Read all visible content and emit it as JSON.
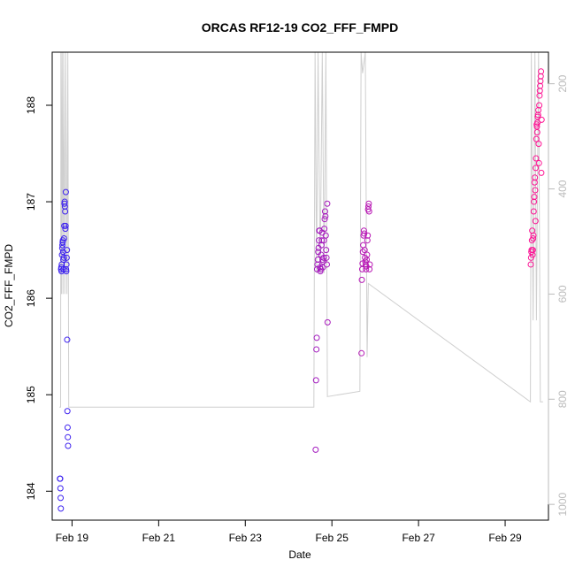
{
  "chart_data": {
    "type": "scatter",
    "title": "ORCAS RF12-19 CO2_FFF_FMPD",
    "xlabel": "Date",
    "ylabel": "CO2_FFF_FMPD",
    "x_axis": {
      "min": "2016-02-18T13:00",
      "max": "2016-03-01T00:00",
      "ticks": [
        {
          "label": "Feb 19",
          "date": "2016-02-19"
        },
        {
          "label": "Feb 21",
          "date": "2016-02-21"
        },
        {
          "label": "Feb 23",
          "date": "2016-02-23"
        },
        {
          "label": "Feb 25",
          "date": "2016-02-25"
        },
        {
          "label": "Feb 27",
          "date": "2016-02-27"
        },
        {
          "label": "Feb 29",
          "date": "2016-02-29"
        }
      ]
    },
    "y_axis": {
      "ylim": [
        183.7,
        188.55
      ],
      "ticks": [
        184,
        185,
        186,
        187,
        188
      ]
    },
    "y2_axis": {
      "ylim": [
        1030,
        140
      ],
      "ticks": [
        200,
        400,
        600,
        800,
        1000
      ],
      "color": "#bbbbbb"
    },
    "grid": false,
    "colors": {
      "points_start": "#3b22f0",
      "points_end": "#ff1493",
      "secondary_line": "#cfcfcf",
      "axes": "#000000"
    },
    "series": [
      {
        "type": "points",
        "groups": [
          {
            "date": "2016-02-18",
            "t0": 17.3,
            "t1": 21.8,
            "values": [
              184.13,
              184.13,
              184.03,
              183.93,
              183.82,
              186.3,
              186.32,
              186.28,
              186.35,
              186.45,
              186.52,
              186.55,
              186.58,
              186.6,
              186.48,
              186.4,
              186.3,
              186.42,
              186.62,
              186.75,
              186.98,
              187.0,
              186.95,
              186.9,
              186.72,
              186.75,
              187.1,
              186.3,
              186.28,
              186.35,
              186.42,
              186.5,
              185.57,
              184.83,
              184.66,
              184.56,
              184.47
            ]
          },
          {
            "date": "2016-02-24",
            "t0": 15.0,
            "t1": 21.6,
            "values": [
              184.43,
              185.15,
              185.47,
              185.59,
              186.3,
              186.35,
              186.4,
              186.48,
              186.52,
              186.6,
              186.7,
              186.7,
              186.32,
              186.28,
              186.3,
              186.45,
              186.55,
              186.6,
              186.68,
              186.4,
              186.32,
              186.38,
              186.42,
              186.6,
              186.72,
              186.82,
              186.9,
              186.85,
              186.65,
              186.5,
              186.42,
              186.35,
              186.98,
              185.75
            ]
          },
          {
            "date": "2016-02-25",
            "t0": 16.4,
            "t1": 21.0,
            "values": [
              185.43,
              186.19,
              186.3,
              186.36,
              186.48,
              186.55,
              186.65,
              186.7,
              186.67,
              186.5,
              186.42,
              186.38,
              186.35,
              186.3,
              186.33,
              186.4,
              186.45,
              186.6,
              186.65,
              186.92,
              186.95,
              186.98,
              186.9,
              186.3,
              186.35
            ]
          },
          {
            "date": "2016-02-29",
            "t0": 14.2,
            "t1": 20.2,
            "values": [
              186.35,
              186.42,
              186.48,
              186.5,
              186.6,
              186.7,
              186.45,
              186.5,
              186.62,
              186.65,
              186.9,
              187.0,
              187.05,
              187.2,
              187.25,
              187.12,
              186.8,
              187.35,
              187.45,
              187.65,
              187.8,
              187.78,
              187.72,
              187.82,
              187.88,
              187.9,
              187.95,
              187.6,
              187.4,
              188.0,
              188.1,
              188.15,
              188.2,
              188.25,
              188.3,
              188.35,
              187.3,
              187.85
            ]
          }
        ]
      },
      {
        "type": "line",
        "axis": "right",
        "note_source": "secondary trace plotted against right axis",
        "path_points": [
          [
            "2016-02-18T17:00",
            815
          ],
          [
            "2016-02-18T17:40",
            815
          ],
          [
            "2016-02-18T17:50",
            140
          ],
          [
            "2016-02-18T18:10",
            600
          ],
          [
            "2016-02-18T18:30",
            140
          ],
          [
            "2016-02-18T19:00",
            600
          ],
          [
            "2016-02-18T19:20",
            140
          ],
          [
            "2016-02-18T20:00",
            600
          ],
          [
            "2016-02-18T20:30",
            140
          ],
          [
            "2016-02-18T21:10",
            600
          ],
          [
            "2016-02-18T21:40",
            140
          ],
          [
            "2016-02-18T22:10",
            815
          ],
          [
            "2016-02-24T14:00",
            815
          ],
          [
            "2016-02-24T14:40",
            140
          ],
          [
            "2016-02-24T15:30",
            560
          ],
          [
            "2016-02-24T16:20",
            140
          ],
          [
            "2016-02-24T17:30",
            560
          ],
          [
            "2016-02-24T18:40",
            140
          ],
          [
            "2016-02-24T19:40",
            560
          ],
          [
            "2016-02-24T20:40",
            140
          ],
          [
            "2016-02-24T21:30",
            795
          ],
          [
            "2016-02-25T15:30",
            785
          ],
          [
            "2016-02-25T16:10",
            140
          ],
          [
            "2016-02-25T17:00",
            180
          ],
          [
            "2016-02-25T18:30",
            140
          ],
          [
            "2016-02-25T19:30",
            720
          ],
          [
            "2016-02-25T20:10",
            580
          ],
          [
            "2016-02-29T14:00",
            805
          ],
          [
            "2016-02-29T14:30",
            140
          ],
          [
            "2016-02-29T15:30",
            650
          ],
          [
            "2016-02-29T16:30",
            140
          ],
          [
            "2016-02-29T17:20",
            650
          ],
          [
            "2016-02-29T18:30",
            140
          ],
          [
            "2016-02-29T19:30",
            805
          ],
          [
            "2016-02-29T21:00",
            805
          ]
        ]
      }
    ]
  }
}
